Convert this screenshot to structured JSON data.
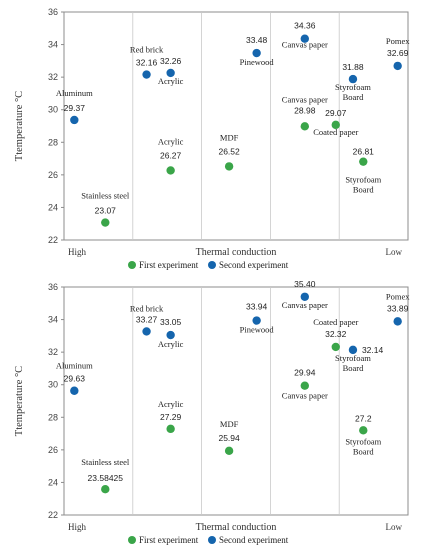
{
  "colors": {
    "first": "#3aa549",
    "second": "#1565ad",
    "grid": "#c9c9c9",
    "frame": "#8c8c8c"
  },
  "chart_data": [
    {
      "type": "scatter",
      "ylabel": "Ttemperature °C",
      "xlabel": "Thermal conduction",
      "x_left_label": "High",
      "x_right_label": "Low",
      "ylim": [
        22,
        36
      ],
      "yticks": [
        22,
        24,
        26,
        28,
        30,
        32,
        34,
        36
      ],
      "xlim": [
        0,
        100
      ],
      "grid": "vertical",
      "legend_position": "bottom",
      "series": [
        {
          "name": "First experiment",
          "color_key": "first",
          "points": [
            {
              "x": 12,
              "y": 23.07,
              "label": "23.07",
              "name": "Stainless steel"
            },
            {
              "x": 31,
              "y": 26.27,
              "label": "26.27",
              "name": "Acrylic"
            },
            {
              "x": 48,
              "y": 26.52,
              "label": "26.52",
              "name": "MDF"
            },
            {
              "x": 70,
              "y": 28.98,
              "label": "28.98",
              "name": "Canvas paper"
            },
            {
              "x": 79,
              "y": 29.07,
              "label": "29.07",
              "name": "Coated paper"
            },
            {
              "x": 87,
              "y": 26.81,
              "label": "26.81",
              "name": "Styrofoam Board"
            }
          ]
        },
        {
          "name": "Second experiment",
          "color_key": "second",
          "points": [
            {
              "x": 3,
              "y": 29.37,
              "label": "29.37",
              "name": "Aluminum"
            },
            {
              "x": 24,
              "y": 32.16,
              "label": "32.16",
              "name": "Red brick"
            },
            {
              "x": 31,
              "y": 32.26,
              "label": "32.26",
              "name": "Acrylic"
            },
            {
              "x": 56,
              "y": 33.48,
              "label": "33.48",
              "name": "Pinewood"
            },
            {
              "x": 70,
              "y": 34.36,
              "label": "34.36",
              "name": "Canvas paper"
            },
            {
              "x": 84,
              "y": 31.88,
              "label": "31.88",
              "name": "Styrofoam Board"
            },
            {
              "x": 97,
              "y": 32.69,
              "label": "32.69",
              "name": "Pomex"
            }
          ]
        }
      ]
    },
    {
      "type": "scatter",
      "ylabel": "Ttemperature °C",
      "xlabel": "Thermal conduction",
      "x_left_label": "High",
      "x_right_label": "Low",
      "ylim": [
        22,
        36
      ],
      "yticks": [
        22,
        24,
        26,
        28,
        30,
        32,
        34,
        36
      ],
      "xlim": [
        0,
        100
      ],
      "grid": "vertical",
      "legend_position": "bottom",
      "series": [
        {
          "name": "First experiment",
          "color_key": "first",
          "points": [
            {
              "x": 12,
              "y": 23.58425,
              "label": "23.58425",
              "name": "Stainless steel"
            },
            {
              "x": 31,
              "y": 27.29,
              "label": "27.29",
              "name": "Acrylic"
            },
            {
              "x": 48,
              "y": 25.94,
              "label": "25.94",
              "name": "MDF"
            },
            {
              "x": 70,
              "y": 29.94,
              "label": "29.94",
              "name": "Canvas paper"
            },
            {
              "x": 79,
              "y": 32.32,
              "label": "32.32",
              "name": "Coated paper"
            },
            {
              "x": 87,
              "y": 27.2,
              "label": "27.2",
              "name": "Styrofoam Board"
            }
          ]
        },
        {
          "name": "Second experiment",
          "color_key": "second",
          "points": [
            {
              "x": 3,
              "y": 29.63,
              "label": "29.63",
              "name": "Aluminum"
            },
            {
              "x": 24,
              "y": 33.27,
              "label": "33.27",
              "name": "Red brick"
            },
            {
              "x": 31,
              "y": 33.05,
              "label": "33.05",
              "name": "Acrylic"
            },
            {
              "x": 56,
              "y": 33.94,
              "label": "33.94",
              "name": "Pinewood"
            },
            {
              "x": 70,
              "y": 35.4,
              "label": "35.40",
              "name": "Canvas paper"
            },
            {
              "x": 84,
              "y": 32.14,
              "label": "32.14",
              "name": "Styrofoam Board"
            },
            {
              "x": 97,
              "y": 33.89,
              "label": "33.89",
              "name": "Pomex"
            }
          ]
        }
      ]
    }
  ]
}
